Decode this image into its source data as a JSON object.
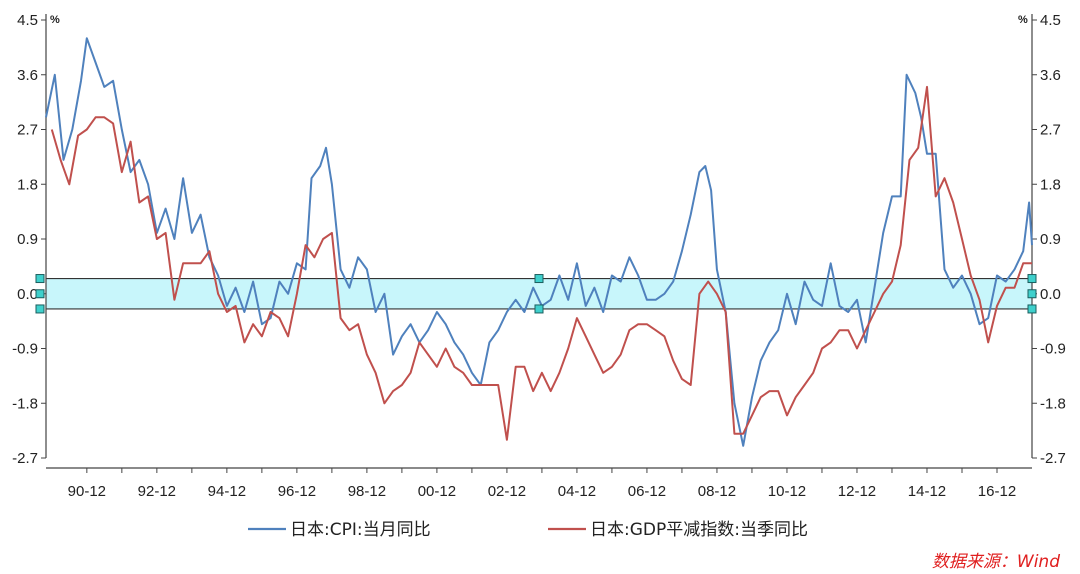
{
  "chart_data": {
    "type": "line",
    "y_unit_left": "%",
    "y_unit_right": "%",
    "ylim": [
      -2.7,
      4.5
    ],
    "yticks": [
      "4.5",
      "3.6",
      "2.7",
      "1.8",
      "0.9",
      "0.0",
      "-0.9",
      "-1.8",
      "-2.7"
    ],
    "x_range": [
      "1989-10",
      "2017-12"
    ],
    "xticks": [
      "90-12",
      "92-12",
      "94-12",
      "96-12",
      "98-12",
      "00-12",
      "02-12",
      "04-12",
      "06-12",
      "08-12",
      "10-12",
      "12-12",
      "14-12",
      "16-12"
    ],
    "highlight_band": [
      -0.25,
      0.25
    ],
    "series": [
      {
        "name": "日本:CPI:当月同比",
        "color": "#4f81bd",
        "points": [
          [
            "1989-10",
            2.9
          ],
          [
            "1990-01",
            3.6
          ],
          [
            "1990-04",
            2.2
          ],
          [
            "1990-07",
            2.7
          ],
          [
            "1990-10",
            3.5
          ],
          [
            "1990-12",
            4.2
          ],
          [
            "1991-03",
            3.8
          ],
          [
            "1991-06",
            3.4
          ],
          [
            "1991-09",
            3.5
          ],
          [
            "1991-12",
            2.7
          ],
          [
            "1992-03",
            2.0
          ],
          [
            "1992-06",
            2.2
          ],
          [
            "1992-09",
            1.8
          ],
          [
            "1992-12",
            1.0
          ],
          [
            "1993-03",
            1.4
          ],
          [
            "1993-06",
            0.9
          ],
          [
            "1993-09",
            1.9
          ],
          [
            "1993-12",
            1.0
          ],
          [
            "1994-03",
            1.3
          ],
          [
            "1994-06",
            0.6
          ],
          [
            "1994-09",
            0.3
          ],
          [
            "1994-12",
            -0.2
          ],
          [
            "1995-03",
            0.1
          ],
          [
            "1995-06",
            -0.3
          ],
          [
            "1995-09",
            0.2
          ],
          [
            "1995-12",
            -0.5
          ],
          [
            "1996-03",
            -0.4
          ],
          [
            "1996-06",
            0.2
          ],
          [
            "1996-09",
            0.0
          ],
          [
            "1996-12",
            0.5
          ],
          [
            "1997-03",
            0.4
          ],
          [
            "1997-05",
            1.9
          ],
          [
            "1997-08",
            2.1
          ],
          [
            "1997-10",
            2.4
          ],
          [
            "1997-12",
            1.8
          ],
          [
            "1998-03",
            0.4
          ],
          [
            "1998-06",
            0.1
          ],
          [
            "1998-09",
            0.6
          ],
          [
            "1998-12",
            0.4
          ],
          [
            "1999-03",
            -0.3
          ],
          [
            "1999-06",
            0.0
          ],
          [
            "1999-09",
            -1.0
          ],
          [
            "1999-12",
            -0.7
          ],
          [
            "2000-03",
            -0.5
          ],
          [
            "2000-06",
            -0.8
          ],
          [
            "2000-09",
            -0.6
          ],
          [
            "2000-12",
            -0.3
          ],
          [
            "2001-03",
            -0.5
          ],
          [
            "2001-06",
            -0.8
          ],
          [
            "2001-09",
            -1.0
          ],
          [
            "2001-12",
            -1.3
          ],
          [
            "2002-03",
            -1.5
          ],
          [
            "2002-06",
            -0.8
          ],
          [
            "2002-09",
            -0.6
          ],
          [
            "2002-12",
            -0.3
          ],
          [
            "2003-03",
            -0.1
          ],
          [
            "2003-06",
            -0.3
          ],
          [
            "2003-09",
            0.1
          ],
          [
            "2003-12",
            -0.2
          ],
          [
            "2004-03",
            -0.1
          ],
          [
            "2004-06",
            0.3
          ],
          [
            "2004-09",
            -0.1
          ],
          [
            "2004-12",
            0.5
          ],
          [
            "2005-03",
            -0.2
          ],
          [
            "2005-06",
            0.1
          ],
          [
            "2005-09",
            -0.3
          ],
          [
            "2005-12",
            0.3
          ],
          [
            "2006-03",
            0.2
          ],
          [
            "2006-06",
            0.6
          ],
          [
            "2006-09",
            0.3
          ],
          [
            "2006-12",
            -0.1
          ],
          [
            "2007-03",
            -0.1
          ],
          [
            "2007-06",
            0.0
          ],
          [
            "2007-09",
            0.2
          ],
          [
            "2007-12",
            0.7
          ],
          [
            "2008-03",
            1.3
          ],
          [
            "2008-06",
            2.0
          ],
          [
            "2008-08",
            2.1
          ],
          [
            "2008-10",
            1.7
          ],
          [
            "2008-12",
            0.4
          ],
          [
            "2009-03",
            -0.3
          ],
          [
            "2009-06",
            -1.8
          ],
          [
            "2009-09",
            -2.5
          ],
          [
            "2009-12",
            -1.7
          ],
          [
            "2010-03",
            -1.1
          ],
          [
            "2010-06",
            -0.8
          ],
          [
            "2010-09",
            -0.6
          ],
          [
            "2010-12",
            0.0
          ],
          [
            "2011-03",
            -0.5
          ],
          [
            "2011-06",
            0.2
          ],
          [
            "2011-09",
            -0.1
          ],
          [
            "2011-12",
            -0.2
          ],
          [
            "2012-03",
            0.5
          ],
          [
            "2012-06",
            -0.2
          ],
          [
            "2012-09",
            -0.3
          ],
          [
            "2012-12",
            -0.1
          ],
          [
            "2013-03",
            -0.8
          ],
          [
            "2013-06",
            0.1
          ],
          [
            "2013-09",
            1.0
          ],
          [
            "2013-12",
            1.6
          ],
          [
            "2014-03",
            1.6
          ],
          [
            "2014-05",
            3.6
          ],
          [
            "2014-08",
            3.3
          ],
          [
            "2014-10",
            2.9
          ],
          [
            "2014-12",
            2.3
          ],
          [
            "2015-03",
            2.3
          ],
          [
            "2015-06",
            0.4
          ],
          [
            "2015-09",
            0.1
          ],
          [
            "2015-12",
            0.3
          ],
          [
            "2016-03",
            0.0
          ],
          [
            "2016-06",
            -0.5
          ],
          [
            "2016-09",
            -0.4
          ],
          [
            "2016-12",
            0.3
          ],
          [
            "2017-03",
            0.2
          ],
          [
            "2017-06",
            0.4
          ],
          [
            "2017-09",
            0.7
          ],
          [
            "2017-11",
            1.5
          ],
          [
            "2017-12",
            0.8
          ]
        ]
      },
      {
        "name": "日本:GDP平减指数:当季同比",
        "color": "#c0504d",
        "points": [
          [
            "1989-12",
            2.7
          ],
          [
            "1990-03",
            2.2
          ],
          [
            "1990-06",
            1.8
          ],
          [
            "1990-09",
            2.6
          ],
          [
            "1990-12",
            2.7
          ],
          [
            "1991-03",
            2.9
          ],
          [
            "1991-06",
            2.9
          ],
          [
            "1991-09",
            2.8
          ],
          [
            "1991-12",
            2.0
          ],
          [
            "1992-03",
            2.5
          ],
          [
            "1992-06",
            1.5
          ],
          [
            "1992-09",
            1.6
          ],
          [
            "1992-12",
            0.9
          ],
          [
            "1993-03",
            1.0
          ],
          [
            "1993-06",
            -0.1
          ],
          [
            "1993-09",
            0.5
          ],
          [
            "1993-12",
            0.5
          ],
          [
            "1994-03",
            0.5
          ],
          [
            "1994-06",
            0.7
          ],
          [
            "1994-09",
            0.0
          ],
          [
            "1994-12",
            -0.3
          ],
          [
            "1995-03",
            -0.2
          ],
          [
            "1995-06",
            -0.8
          ],
          [
            "1995-09",
            -0.5
          ],
          [
            "1995-12",
            -0.7
          ],
          [
            "1996-03",
            -0.3
          ],
          [
            "1996-06",
            -0.4
          ],
          [
            "1996-09",
            -0.7
          ],
          [
            "1996-12",
            0.0
          ],
          [
            "1997-03",
            0.8
          ],
          [
            "1997-06",
            0.6
          ],
          [
            "1997-09",
            0.9
          ],
          [
            "1997-12",
            1.0
          ],
          [
            "1998-03",
            -0.4
          ],
          [
            "1998-06",
            -0.6
          ],
          [
            "1998-09",
            -0.5
          ],
          [
            "1998-12",
            -1.0
          ],
          [
            "1999-03",
            -1.3
          ],
          [
            "1999-06",
            -1.8
          ],
          [
            "1999-09",
            -1.6
          ],
          [
            "1999-12",
            -1.5
          ],
          [
            "2000-03",
            -1.3
          ],
          [
            "2000-06",
            -0.8
          ],
          [
            "2000-09",
            -1.0
          ],
          [
            "2000-12",
            -1.2
          ],
          [
            "2001-03",
            -0.9
          ],
          [
            "2001-06",
            -1.2
          ],
          [
            "2001-09",
            -1.3
          ],
          [
            "2001-12",
            -1.5
          ],
          [
            "2002-03",
            -1.5
          ],
          [
            "2002-06",
            -1.5
          ],
          [
            "2002-09",
            -1.5
          ],
          [
            "2002-12",
            -2.4
          ],
          [
            "2003-03",
            -1.2
          ],
          [
            "2003-06",
            -1.2
          ],
          [
            "2003-09",
            -1.6
          ],
          [
            "2003-12",
            -1.3
          ],
          [
            "2004-03",
            -1.6
          ],
          [
            "2004-06",
            -1.3
          ],
          [
            "2004-09",
            -0.9
          ],
          [
            "2004-12",
            -0.4
          ],
          [
            "2005-03",
            -0.7
          ],
          [
            "2005-06",
            -1.0
          ],
          [
            "2005-09",
            -1.3
          ],
          [
            "2005-12",
            -1.2
          ],
          [
            "2006-03",
            -1.0
          ],
          [
            "2006-06",
            -0.6
          ],
          [
            "2006-09",
            -0.5
          ],
          [
            "2006-12",
            -0.5
          ],
          [
            "2007-03",
            -0.6
          ],
          [
            "2007-06",
            -0.7
          ],
          [
            "2007-09",
            -1.1
          ],
          [
            "2007-12",
            -1.4
          ],
          [
            "2008-03",
            -1.5
          ],
          [
            "2008-06",
            0.0
          ],
          [
            "2008-09",
            0.2
          ],
          [
            "2008-12",
            0.0
          ],
          [
            "2009-03",
            -0.3
          ],
          [
            "2009-06",
            -2.3
          ],
          [
            "2009-09",
            -2.3
          ],
          [
            "2009-12",
            -2.0
          ],
          [
            "2010-03",
            -1.7
          ],
          [
            "2010-06",
            -1.6
          ],
          [
            "2010-09",
            -1.6
          ],
          [
            "2010-12",
            -2.0
          ],
          [
            "2011-03",
            -1.7
          ],
          [
            "2011-06",
            -1.5
          ],
          [
            "2011-09",
            -1.3
          ],
          [
            "2011-12",
            -0.9
          ],
          [
            "2012-03",
            -0.8
          ],
          [
            "2012-06",
            -0.6
          ],
          [
            "2012-09",
            -0.6
          ],
          [
            "2012-12",
            -0.9
          ],
          [
            "2013-03",
            -0.6
          ],
          [
            "2013-06",
            -0.3
          ],
          [
            "2013-09",
            0.0
          ],
          [
            "2013-12",
            0.2
          ],
          [
            "2014-03",
            0.8
          ],
          [
            "2014-06",
            2.2
          ],
          [
            "2014-09",
            2.4
          ],
          [
            "2014-12",
            3.4
          ],
          [
            "2015-03",
            1.6
          ],
          [
            "2015-06",
            1.9
          ],
          [
            "2015-09",
            1.5
          ],
          [
            "2015-12",
            0.9
          ],
          [
            "2016-03",
            0.3
          ],
          [
            "2016-06",
            -0.1
          ],
          [
            "2016-09",
            -0.8
          ],
          [
            "2016-12",
            -0.2
          ],
          [
            "2017-03",
            0.1
          ],
          [
            "2017-06",
            0.1
          ],
          [
            "2017-09",
            0.5
          ],
          [
            "2017-12",
            0.5
          ]
        ]
      }
    ]
  },
  "source_text": "数据来源：Wind"
}
